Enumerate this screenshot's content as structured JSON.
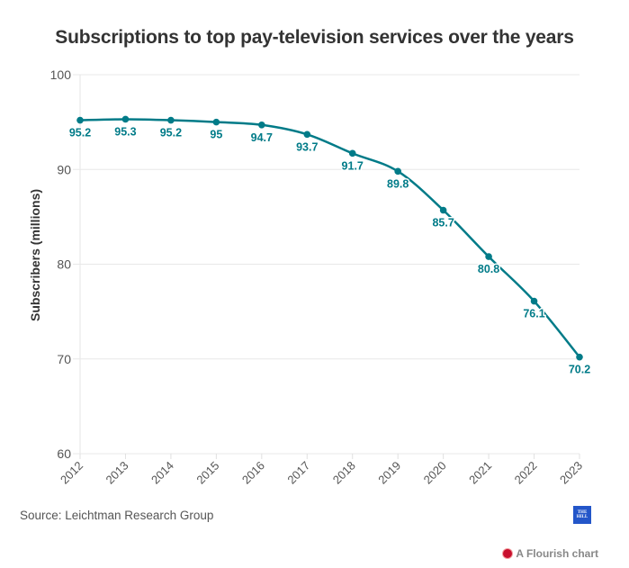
{
  "chart_data": {
    "type": "line",
    "title": "Subscriptions to top pay-television services over the years",
    "xlabel": "",
    "ylabel": "Subscribers (millions)",
    "x": [
      "2012",
      "2013",
      "2014",
      "2015",
      "2016",
      "2017",
      "2018",
      "2019",
      "2020",
      "2021",
      "2022",
      "2023"
    ],
    "series": [
      {
        "name": "Subscribers",
        "color": "#007b88",
        "values": [
          95.2,
          95.3,
          95.2,
          95,
          94.7,
          93.7,
          91.7,
          89.8,
          85.7,
          80.8,
          76.1,
          70.2
        ],
        "labels": [
          "95.2",
          "95.3",
          "95.2",
          "95",
          "94.7",
          "93.7",
          "91.7",
          "89.8",
          "85.7",
          "80.8",
          "76.1",
          "70.2"
        ]
      }
    ],
    "ylim": [
      60,
      100
    ],
    "yticks": [
      "60",
      "70",
      "80",
      "90",
      "100"
    ],
    "grid": true,
    "legend": "none"
  },
  "footer": {
    "source": "Source: Leichtman Research Group",
    "logo_line1": "THE",
    "logo_line2": "HILL",
    "flourish_label": "A Flourish chart"
  }
}
